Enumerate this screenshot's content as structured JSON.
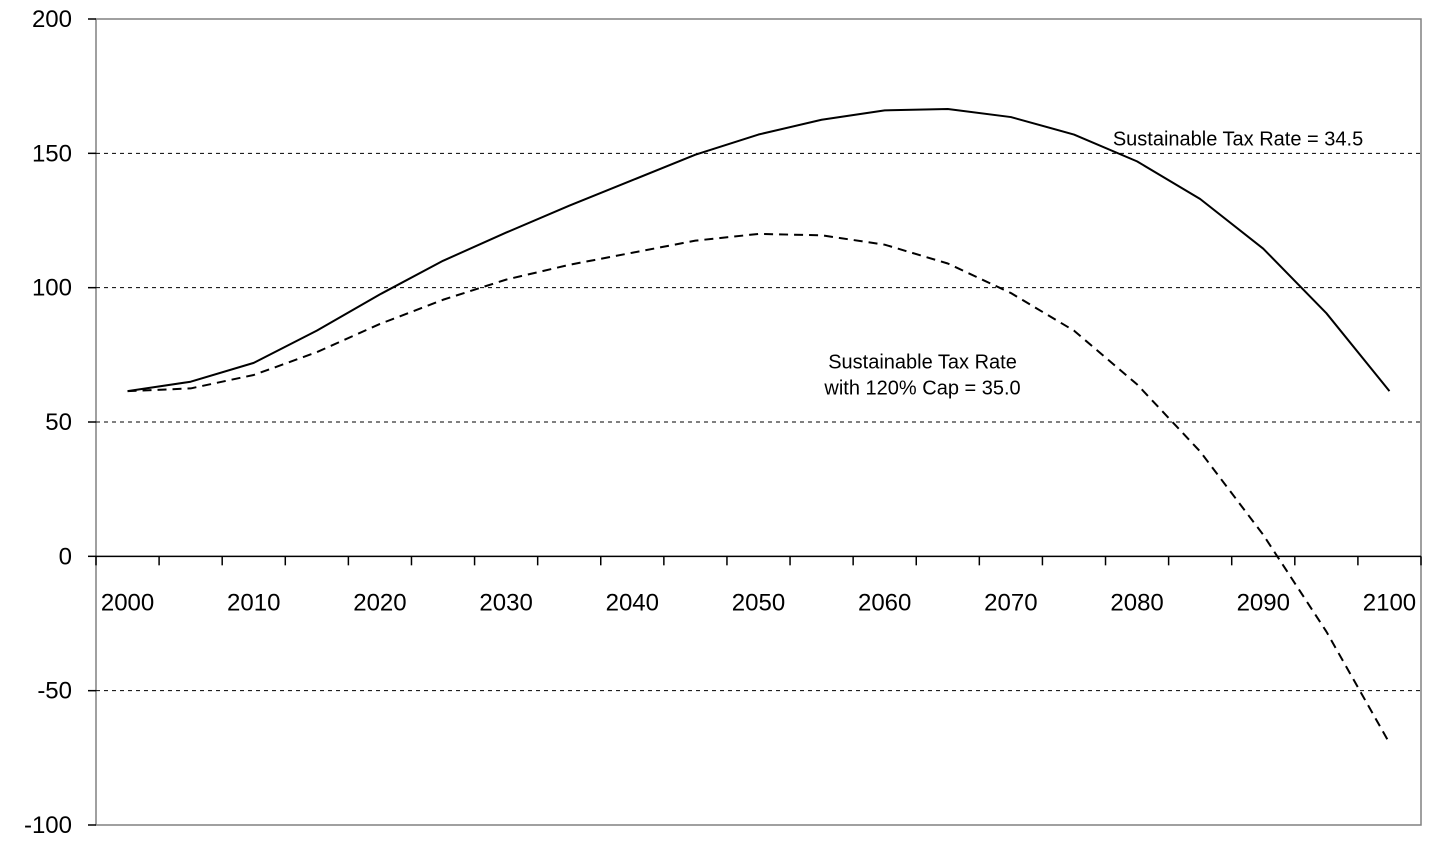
{
  "chart_data": {
    "type": "line",
    "title": "",
    "xlabel": "",
    "ylabel": "",
    "xlim": [
      2000,
      2100
    ],
    "ylim": [
      -100,
      200
    ],
    "x_ticks": [
      2000,
      2010,
      2020,
      2030,
      2040,
      2050,
      2060,
      2070,
      2080,
      2090,
      2100
    ],
    "y_ticks": [
      -100,
      -50,
      0,
      50,
      100,
      150,
      200
    ],
    "grid": "horizontal dashed",
    "legend": "none",
    "series": [
      {
        "style": "solid",
        "x": [
          2000,
          2005,
          2010,
          2015,
          2020,
          2025,
          2030,
          2035,
          2040,
          2045,
          2050,
          2055,
          2060,
          2065,
          2070,
          2075,
          2080,
          2085,
          2090,
          2095,
          2100
        ],
        "values": [
          61.5,
          65,
          72,
          84,
          97.5,
          110,
          120.5,
          130.5,
          140,
          149.5,
          157,
          162.5,
          166,
          166.5,
          163.5,
          157,
          147,
          133,
          114.5,
          90.5,
          61.5
        ]
      },
      {
        "style": "dashed",
        "x": [
          2000,
          2005,
          2010,
          2015,
          2020,
          2025,
          2030,
          2035,
          2040,
          2045,
          2050,
          2055,
          2060,
          2065,
          2070,
          2075,
          2080,
          2085,
          2090,
          2095,
          2100
        ],
        "values": [
          61.5,
          62.5,
          67.5,
          76,
          86.5,
          95.5,
          103,
          108.5,
          113,
          117.5,
          120,
          119.5,
          116,
          109,
          98,
          84,
          64,
          39,
          8,
          -28,
          -69.5
        ]
      }
    ],
    "annotations": [
      {
        "lines": [
          "Sustainable Tax Rate = 34.5"
        ],
        "x": 2088,
        "y": 153
      },
      {
        "lines": [
          "Sustainable Tax Rate",
          "with 120% Cap = 35.0"
        ],
        "x": 2063,
        "y": 70
      }
    ]
  }
}
